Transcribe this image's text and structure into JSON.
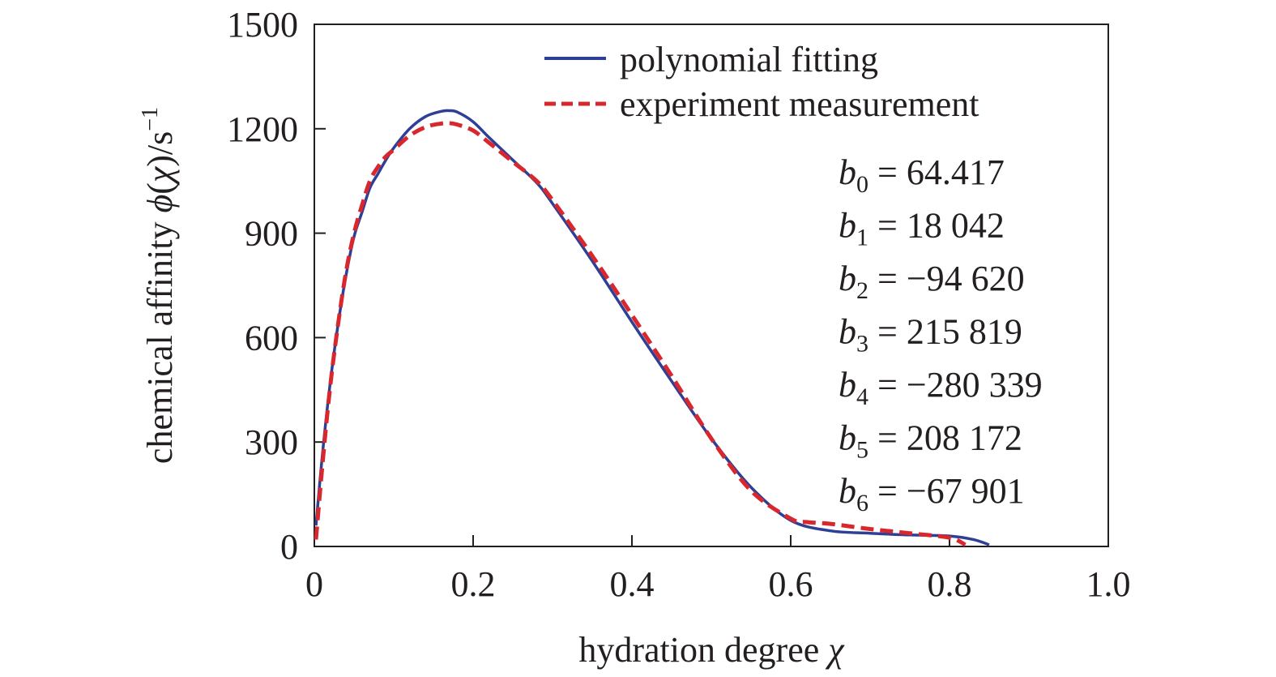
{
  "chart_data": {
    "type": "line",
    "xlabel": "hydration degree",
    "xlabel_symbol": "χ",
    "ylabel": "chemical affinity",
    "ylabel_func": "ϕ",
    "ylabel_arg": "χ",
    "ylabel_unit": "/s",
    "ylabel_unit_exp": "−1",
    "xlim": [
      0,
      1.0
    ],
    "ylim": [
      0,
      1500
    ],
    "xticks": [
      0,
      0.2,
      0.4,
      0.6,
      0.8,
      1.0
    ],
    "xtick_labels": [
      "0",
      "0.2",
      "0.4",
      "0.6",
      "0.8",
      "1.0"
    ],
    "yticks": [
      0,
      300,
      600,
      900,
      1200,
      1500
    ],
    "ytick_labels": [
      "0",
      "300",
      "600",
      "900",
      "1200",
      "1500"
    ],
    "grid": false,
    "legend_position": "top-right",
    "series": [
      {
        "name": "polynomial fitting",
        "color": "#2e3f95",
        "style": "solid",
        "x": [
          0.002,
          0.01,
          0.02,
          0.03,
          0.04,
          0.05,
          0.06,
          0.07,
          0.08,
          0.09,
          0.1,
          0.12,
          0.14,
          0.16,
          0.17,
          0.18,
          0.2,
          0.22,
          0.25,
          0.28,
          0.3,
          0.35,
          0.4,
          0.45,
          0.5,
          0.55,
          0.6,
          0.65,
          0.7,
          0.75,
          0.8,
          0.83,
          0.85
        ],
        "y": [
          60,
          260,
          470,
          640,
          780,
          890,
          960,
          1030,
          1070,
          1110,
          1145,
          1200,
          1235,
          1250,
          1252,
          1248,
          1220,
          1175,
          1110,
          1045,
          985,
          820,
          645,
          475,
          310,
          170,
          75,
          45,
          38,
          33,
          30,
          20,
          5
        ]
      },
      {
        "name": "experiment measurement",
        "color": "#d9272e",
        "style": "dashed",
        "x": [
          0.002,
          0.01,
          0.02,
          0.03,
          0.04,
          0.05,
          0.06,
          0.07,
          0.08,
          0.09,
          0.1,
          0.12,
          0.14,
          0.16,
          0.17,
          0.18,
          0.2,
          0.22,
          0.25,
          0.28,
          0.3,
          0.35,
          0.4,
          0.45,
          0.5,
          0.55,
          0.6,
          0.62,
          0.65,
          0.7,
          0.75,
          0.8,
          0.82
        ],
        "y": [
          20,
          230,
          460,
          640,
          790,
          900,
          980,
          1050,
          1090,
          1120,
          1140,
          1180,
          1205,
          1215,
          1216,
          1212,
          1195,
          1160,
          1105,
          1050,
          995,
          835,
          665,
          490,
          310,
          160,
          80,
          70,
          65,
          50,
          38,
          25,
          5
        ]
      }
    ],
    "annotations": [
      {
        "sym": "b",
        "sub": "0",
        "text": " = 64.417"
      },
      {
        "sym": "b",
        "sub": "1",
        "text": " = 18 042"
      },
      {
        "sym": "b",
        "sub": "2",
        "text": " = −94 620"
      },
      {
        "sym": "b",
        "sub": "3",
        "text": " = 215 819"
      },
      {
        "sym": "b",
        "sub": "4",
        "text": " = −280 339"
      },
      {
        "sym": "b",
        "sub": "5",
        "text": " = 208 172"
      },
      {
        "sym": "b",
        "sub": "6",
        "text": " = −67 901"
      }
    ]
  }
}
